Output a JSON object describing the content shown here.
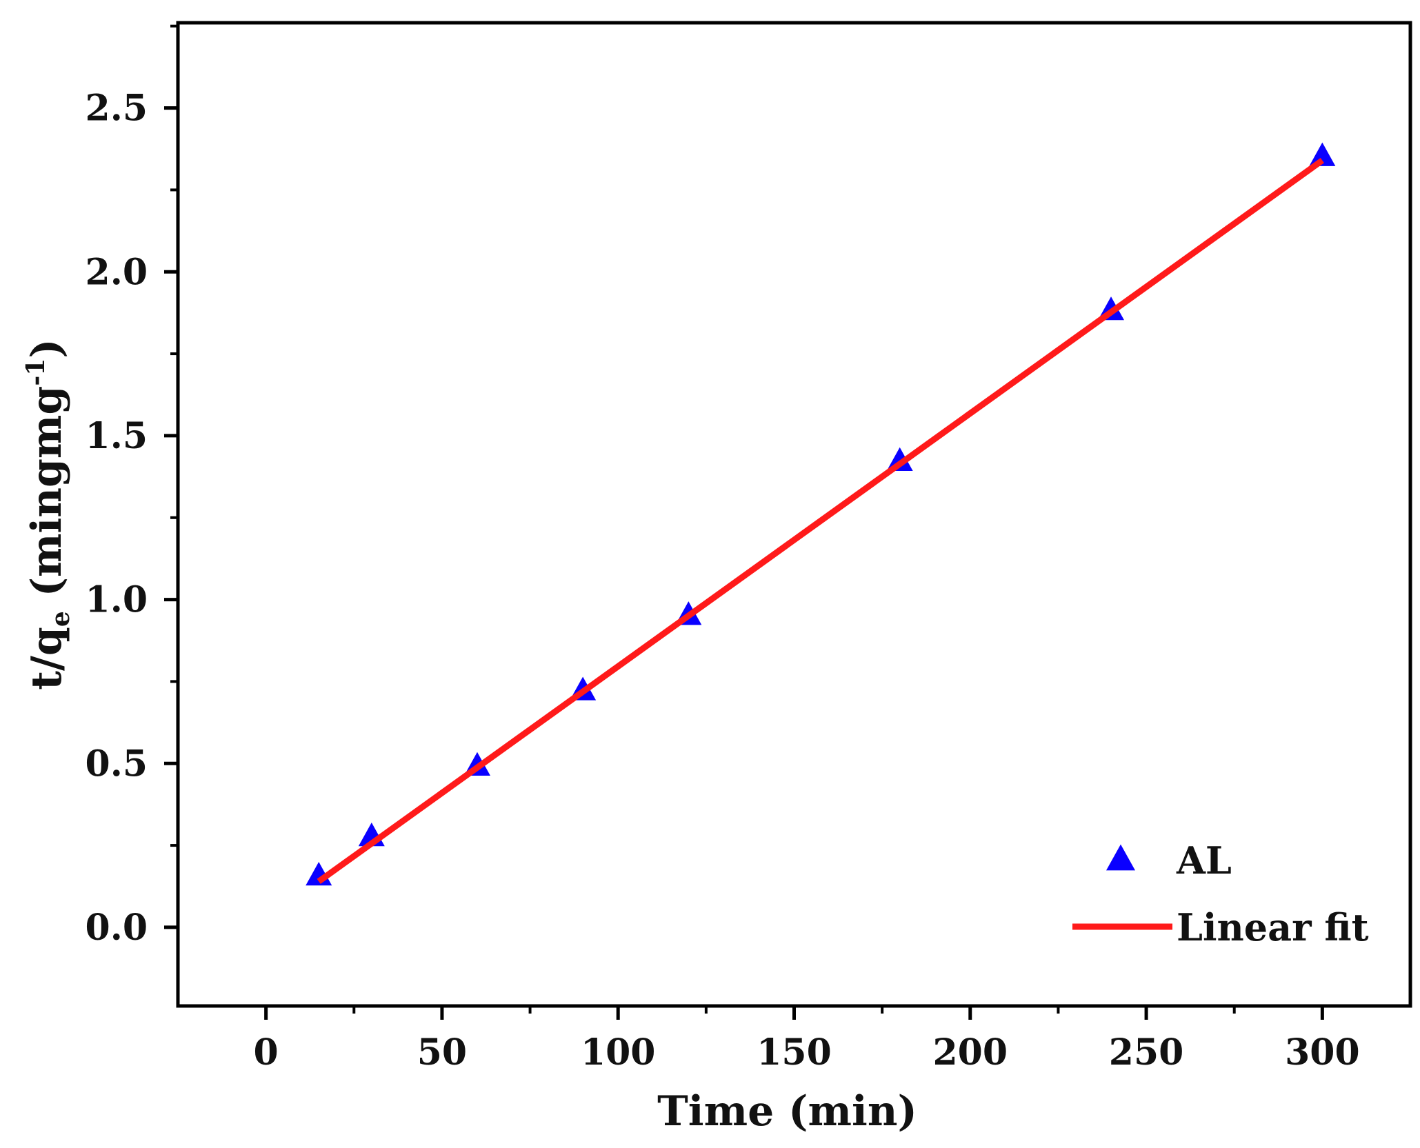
{
  "chart_data": {
    "type": "scatter",
    "title": "",
    "xlabel": "Time (min)",
    "ylabel": {
      "main": "t/q",
      "subscript": "e",
      "unit_open": " (min",
      "middot": "·",
      "unit_rest": "g·mg",
      "superscript": "-1",
      "close": ")"
    },
    "xlim": [
      -25,
      325
    ],
    "ylim": [
      -0.24,
      2.76
    ],
    "x_ticks": [
      0,
      50,
      100,
      150,
      200,
      250,
      300
    ],
    "x_tick_labels": [
      "0",
      "50",
      "100",
      "150",
      "200",
      "250",
      "300"
    ],
    "y_ticks": [
      0.0,
      0.5,
      1.0,
      1.5,
      2.0,
      2.5
    ],
    "y_tick_labels": [
      "0.0",
      "0.5",
      "1.0",
      "1.5",
      "2.0",
      "2.5"
    ],
    "series": [
      {
        "name": "AL",
        "kind": "scatter",
        "marker": "triangle",
        "color": "#0a00ff",
        "x": [
          15,
          30,
          60,
          90,
          120,
          180,
          240,
          300
        ],
        "y": [
          0.155,
          0.275,
          0.49,
          0.72,
          0.95,
          1.42,
          1.88,
          2.35
        ]
      },
      {
        "name": "Linear fit",
        "kind": "line",
        "color": "#ff1a1a",
        "x": [
          15,
          300
        ],
        "y": [
          0.14,
          2.34
        ]
      }
    ],
    "legend": {
      "position": "bottom-right",
      "entries": [
        "AL",
        "Linear fit"
      ]
    },
    "grid": false
  }
}
